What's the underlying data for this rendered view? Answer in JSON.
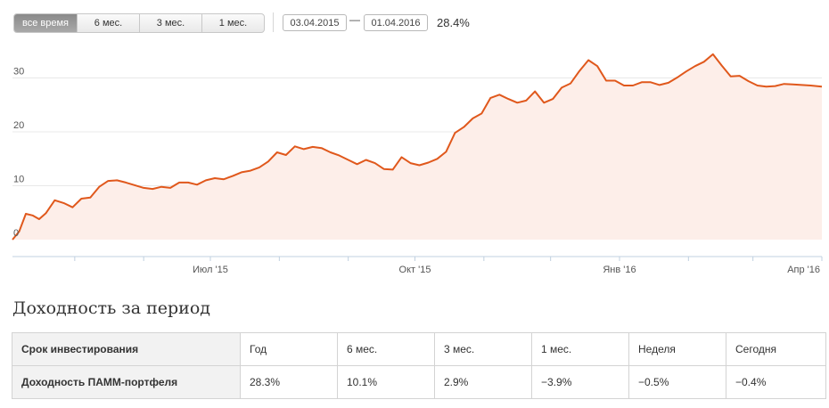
{
  "controls": {
    "periods": [
      "все время",
      "6 мес.",
      "3 мес.",
      "1 мес."
    ],
    "active_period": 0,
    "date_from": "03.04.2015",
    "date_dash": "—",
    "date_to": "01.04.2016",
    "range_return": "28.4%"
  },
  "chart_data": {
    "type": "area",
    "title": "",
    "xlabel": "",
    "ylabel": "",
    "ylim": [
      0,
      36
    ],
    "yticks": [
      0,
      10,
      20,
      30
    ],
    "ytick_labels": [
      "0",
      "10",
      "20",
      "30"
    ],
    "xlim": [
      "2015-04-03",
      "2016-04-01"
    ],
    "xtick_labels": [
      {
        "date": "2015-07-01",
        "label": "Июл '15"
      },
      {
        "date": "2015-10-01",
        "label": "Окт '15"
      },
      {
        "date": "2016-01-01",
        "label": "Янв '16"
      },
      {
        "date": "2016-04-01",
        "label": "Апр '16"
      }
    ],
    "minor_ticks": [
      "2015-05-01",
      "2015-06-01",
      "2015-08-01",
      "2015-09-01",
      "2015-11-01",
      "2015-12-01",
      "2016-02-01",
      "2016-03-01"
    ],
    "grid": true,
    "colors": {
      "line": "#e0581c",
      "fill": "#fdeee9",
      "grid": "#e8e8e8"
    },
    "series": [
      {
        "x": [
          "2015-04-03",
          "2015-04-06",
          "2015-04-09",
          "2015-04-12",
          "2015-04-15",
          "2015-04-18",
          "2015-04-22",
          "2015-04-26",
          "2015-04-30",
          "2015-05-04",
          "2015-05-08",
          "2015-05-12",
          "2015-05-16",
          "2015-05-20",
          "2015-05-24",
          "2015-05-28",
          "2015-06-01",
          "2015-06-05",
          "2015-06-09",
          "2015-06-13",
          "2015-06-17",
          "2015-06-21",
          "2015-06-25",
          "2015-06-29",
          "2015-07-03",
          "2015-07-07",
          "2015-07-11",
          "2015-07-15",
          "2015-07-19",
          "2015-07-23",
          "2015-07-27",
          "2015-07-31",
          "2015-08-04",
          "2015-08-08",
          "2015-08-12",
          "2015-08-16",
          "2015-08-20",
          "2015-08-24",
          "2015-08-28",
          "2015-09-01",
          "2015-09-05",
          "2015-09-09",
          "2015-09-13",
          "2015-09-17",
          "2015-09-21",
          "2015-09-25",
          "2015-09-29",
          "2015-10-03",
          "2015-10-07",
          "2015-10-11",
          "2015-10-15",
          "2015-10-19",
          "2015-10-23",
          "2015-10-27",
          "2015-10-31",
          "2015-11-04",
          "2015-11-08",
          "2015-11-12",
          "2015-11-16",
          "2015-11-20",
          "2015-11-24",
          "2015-11-28",
          "2015-12-02",
          "2015-12-06",
          "2015-12-10",
          "2015-12-14",
          "2015-12-18",
          "2015-12-22",
          "2015-12-26",
          "2015-12-30",
          "2016-01-03",
          "2016-01-07",
          "2016-01-11",
          "2016-01-15",
          "2016-01-19",
          "2016-01-23",
          "2016-01-27",
          "2016-01-31",
          "2016-02-04",
          "2016-02-08",
          "2016-02-12",
          "2016-02-16",
          "2016-02-20",
          "2016-02-24",
          "2016-02-28",
          "2016-03-03",
          "2016-03-07",
          "2016-03-11",
          "2016-03-15",
          "2016-03-19",
          "2016-03-23",
          "2016-03-27",
          "2016-04-01"
        ],
        "y": [
          0.0,
          1.5,
          4.8,
          4.5,
          3.8,
          4.9,
          7.3,
          6.8,
          6.0,
          7.6,
          7.8,
          9.8,
          10.9,
          11.0,
          10.6,
          10.1,
          9.6,
          9.4,
          9.8,
          9.6,
          10.6,
          10.6,
          10.2,
          11.0,
          11.4,
          11.2,
          11.8,
          12.5,
          12.8,
          13.4,
          14.5,
          16.2,
          15.7,
          17.3,
          16.8,
          17.2,
          17.0,
          16.2,
          15.6,
          14.8,
          14.0,
          14.8,
          14.2,
          13.1,
          13.0,
          15.3,
          14.2,
          13.8,
          14.3,
          15.0,
          16.3,
          19.8,
          20.9,
          22.5,
          23.4,
          26.3,
          26.9,
          26.1,
          25.4,
          25.8,
          27.5,
          25.4,
          26.1,
          28.2,
          29.0,
          31.3,
          33.3,
          32.2,
          29.5,
          29.5,
          28.6,
          28.6,
          29.2,
          29.2,
          28.7,
          29.1,
          30.1,
          31.2,
          32.2,
          33.0,
          34.4,
          32.3,
          30.3,
          30.4,
          29.4,
          28.6,
          28.4,
          28.5,
          28.9,
          28.8,
          28.7,
          28.6,
          28.4
        ]
      }
    ]
  },
  "stats": {
    "title": "Доходность за период",
    "header_row": [
      "Срок инвестирования",
      "Год",
      "6 мес.",
      "3 мес.",
      "1 мес.",
      "Неделя",
      "Сегодня"
    ],
    "value_row": [
      "Доходность ПАММ-портфеля",
      "28.3%",
      "10.1%",
      "2.9%",
      "−3.9%",
      "−0.5%",
      "−0.4%"
    ]
  }
}
